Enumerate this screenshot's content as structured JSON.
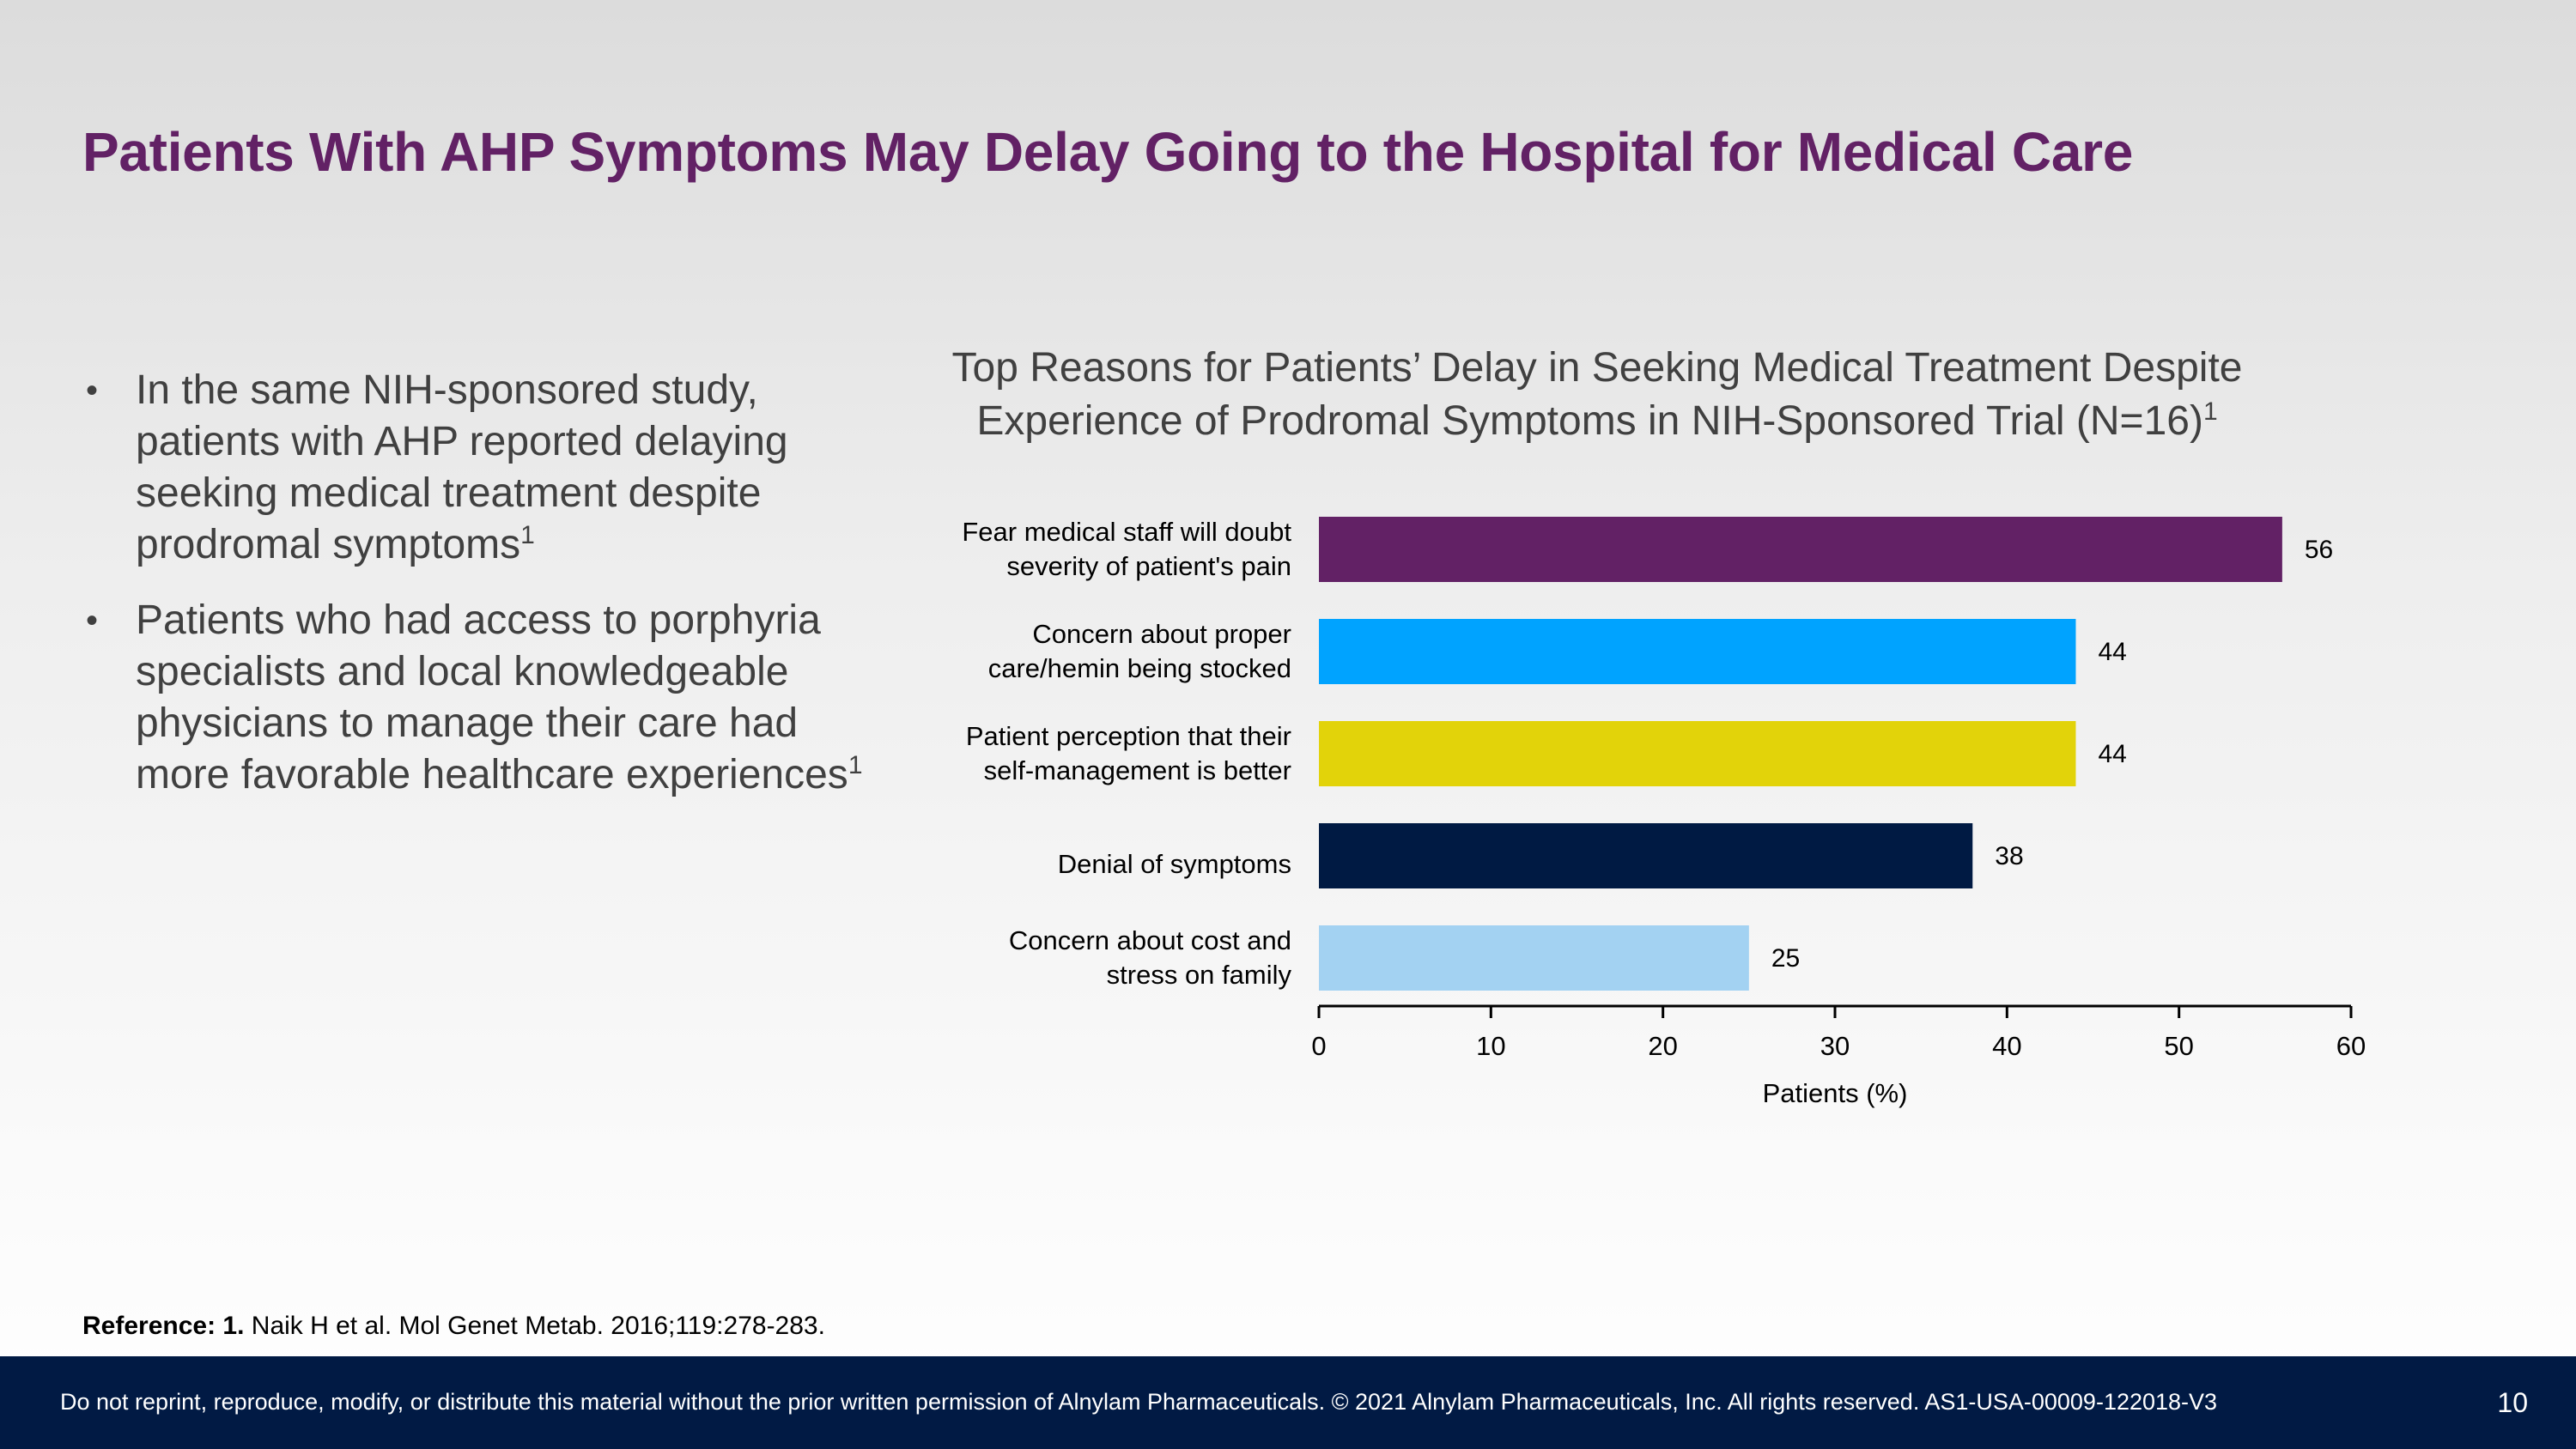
{
  "slide": {
    "title": "Patients With AHP Symptoms May Delay Going to the Hospital for Medical Care",
    "bullets": [
      {
        "text": "In the same NIH-sponsored study, patients with AHP reported delaying seeking medical treatment despite prodromal symptoms",
        "sup": "1"
      },
      {
        "text": "Patients who had access to porphyria specialists and local knowledgeable physicians to manage their care had more favorable healthcare experiences",
        "sup": "1"
      }
    ],
    "bullet_glyph": "•"
  },
  "chart_title": {
    "line1": "Top Reasons for Patients’ Delay in Seeking Medical Treatment Despite",
    "line2": "Experience of Prodromal Symptoms in NIH-Sponsored Trial (N=16)",
    "sup": "1"
  },
  "chart_data": {
    "type": "bar",
    "orientation": "horizontal",
    "categories": [
      [
        "Fear medical staff will doubt",
        "severity of patient's pain"
      ],
      [
        "Concern about proper",
        "care/hemin being stocked"
      ],
      [
        "Patient perception that their",
        "self-management is better"
      ],
      [
        "Denial of symptoms"
      ],
      [
        "Concern about cost and",
        "stress on family"
      ]
    ],
    "values": [
      56,
      44,
      44,
      38,
      25
    ],
    "colors": [
      "#622165",
      "#00a3ff",
      "#e2d30a",
      "#001a43",
      "#a3d2f2"
    ],
    "xlabel": "Patients (%)",
    "xlim": [
      0,
      60
    ],
    "xticks": [
      0,
      10,
      20,
      30,
      40,
      50,
      60
    ],
    "grid": false,
    "legend": "none",
    "data_labels": true
  },
  "reference": {
    "label": "Reference: 1.",
    "text": " Naik H et al. Mol Genet Metab. 2016;119:278-283."
  },
  "footer": {
    "text": "Do not reprint, reproduce, modify, or distribute this material without the prior written permission of Alnylam Pharmaceuticals. © 2021 Alnylam Pharmaceuticals, Inc. All rights reserved. AS1-USA-00009-122018-V3",
    "page_number": "10"
  }
}
